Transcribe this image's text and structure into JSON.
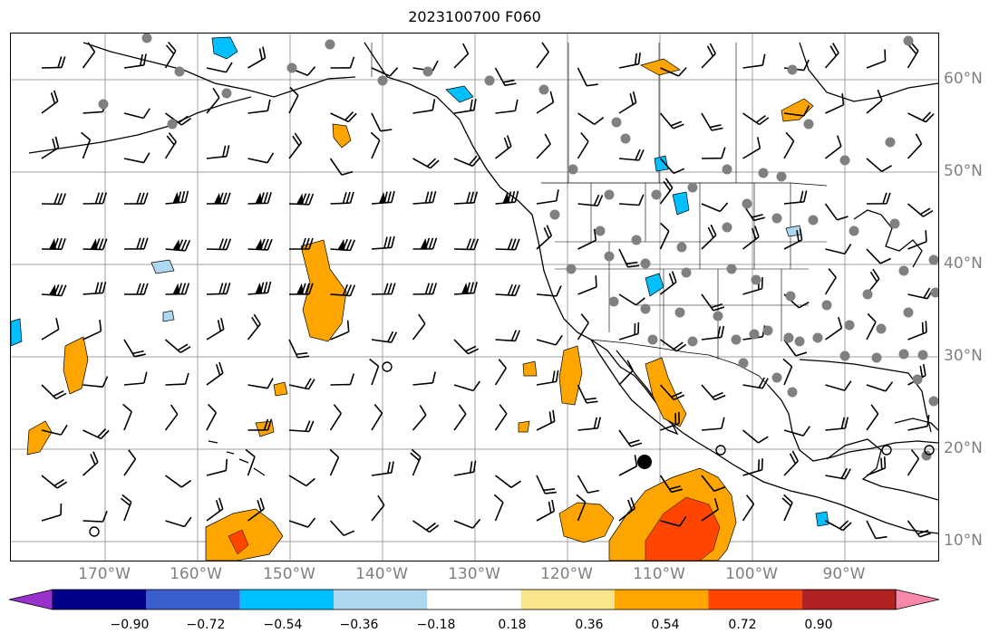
{
  "title": "2023100700 F060",
  "lon_labels": [
    "170°W",
    "160°W",
    "150°W",
    "140°W",
    "130°W",
    "120°W",
    "110°W",
    "100°W",
    "90°W"
  ],
  "lat_labels": [
    "60°N",
    "50°N",
    "40°N",
    "30°N",
    "20°N",
    "10°N"
  ],
  "colorbar": {
    "ticks": [
      "−0.90",
      "−0.72",
      "−0.54",
      "−0.36",
      "−0.18",
      "0.18",
      "0.36",
      "0.54",
      "0.72",
      "0.90"
    ],
    "colors": [
      "#9932cc",
      "#00008b",
      "#3a5fcd",
      "#00bfff",
      "#add8f0",
      "#ffffff",
      "#f9e68a",
      "#ffa500",
      "#ff4500",
      "#b22222",
      "#f988a8"
    ]
  },
  "map": {
    "extent_lon": [
      -180,
      -80
    ],
    "extent_lat": [
      8,
      65
    ],
    "gridlines": true,
    "highlight_marker": {
      "lon": -110.2,
      "lat": 18.8
    }
  }
}
